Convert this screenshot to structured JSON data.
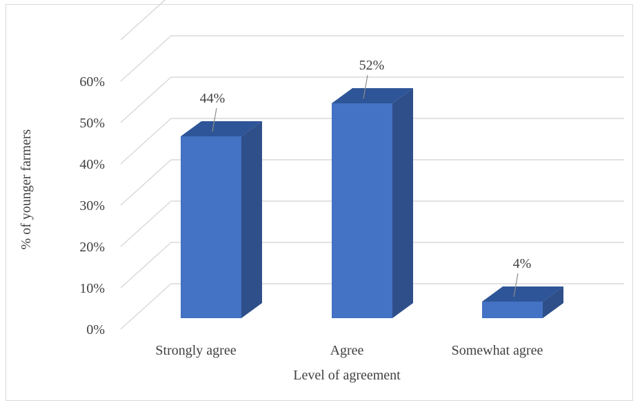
{
  "chart_data": {
    "type": "bar",
    "title": "",
    "xlabel": "Level of agreement",
    "ylabel": "% of younger farmers",
    "categories": [
      "Strongly agree",
      "Agree",
      "Somewhat agree"
    ],
    "values": [
      44,
      52,
      4
    ],
    "data_labels": [
      "44%",
      "52%",
      "4%"
    ],
    "y_ticks": [
      "0%",
      "10%",
      "20%",
      "30%",
      "40%",
      "50%",
      "60%"
    ],
    "ylim": [
      0,
      60
    ],
    "grid": true,
    "style_3d": true,
    "colors": {
      "bar_front": "#4472c4",
      "bar_side": "#2f4f8a",
      "bar_top": "#2e5597",
      "grid": "#d9d9d9",
      "text": "#404040"
    }
  }
}
